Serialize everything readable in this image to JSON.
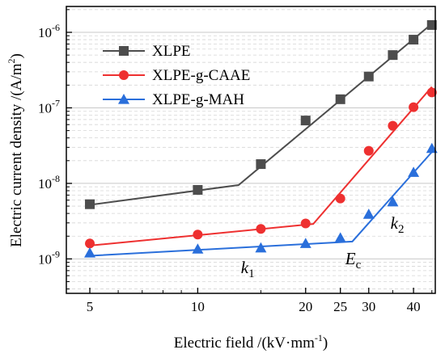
{
  "chart_data": {
    "type": "scatter",
    "title": "",
    "xlabel_prefix": "Electric field /(kV·mm",
    "xlabel_exp": "-1",
    "xlabel_suffix": ")",
    "ylabel_prefix": "Electric current density /(A/m",
    "ylabel_exp": "2",
    "ylabel_suffix": ")",
    "x_scale": "log",
    "y_scale": "log",
    "xlim": [
      4.3,
      46
    ],
    "ylim": [
      3.5e-10,
      2.2e-06
    ],
    "x_ticks": [
      5,
      10,
      20,
      25,
      30,
      40
    ],
    "x_tick_labels": [
      "5",
      "10",
      "20",
      "25",
      "30",
      "40"
    ],
    "y_ticks": [
      1e-09,
      1e-08,
      1e-07,
      1e-06
    ],
    "y_tick_labels": [
      {
        "base": "10",
        "exp": "-9"
      },
      {
        "base": "10",
        "exp": "-8"
      },
      {
        "base": "10",
        "exp": "-7"
      },
      {
        "base": "10",
        "exp": "-6"
      }
    ],
    "grid": "y-major-minor-dashed",
    "legend_position": "top-left",
    "series": [
      {
        "name": "XLPE",
        "marker": "square",
        "color": "#4d4d4d",
        "x": [
          5,
          10,
          15,
          20,
          25,
          30,
          35,
          40,
          45
        ],
        "y": [
          5.3e-09,
          8.2e-09,
          1.8e-08,
          6.8e-08,
          1.3e-07,
          2.6e-07,
          5e-07,
          8e-07,
          1.25e-06
        ],
        "fit_line": [
          [
            5,
            5.2e-09
          ],
          [
            13,
            9.5e-09
          ],
          [
            45,
            1.3e-06
          ]
        ]
      },
      {
        "name": "XLPE-g-CAAE",
        "marker": "circle",
        "color": "#ee3030",
        "x": [
          5,
          10,
          15,
          20,
          25,
          30,
          35,
          40,
          45
        ],
        "y": [
          1.6e-09,
          2.1e-09,
          2.5e-09,
          2.95e-09,
          6.3e-09,
          2.7e-08,
          5.8e-08,
          1.02e-07,
          1.6e-07
        ],
        "fit_line": [
          [
            5,
            1.5e-09
          ],
          [
            21,
            2.9e-09
          ],
          [
            45,
            1.9e-07
          ]
        ]
      },
      {
        "name": "XLPE-g-MAH",
        "marker": "triangle",
        "color": "#2a6fdb",
        "x": [
          5,
          10,
          15,
          20,
          25,
          30,
          35,
          40,
          45
        ],
        "y": [
          1.2e-09,
          1.35e-09,
          1.4e-09,
          1.6e-09,
          1.9e-09,
          3.9e-09,
          5.7e-09,
          1.4e-08,
          2.9e-08
        ],
        "fit_line": [
          [
            5,
            1.1e-09
          ],
          [
            27,
            1.7e-09
          ],
          [
            45,
            2.6e-08
          ]
        ]
      }
    ],
    "annotations": [
      {
        "text": "k",
        "sub": "1",
        "x": 13.2,
        "y": 6.5e-10
      },
      {
        "text": "E",
        "sub": "c",
        "x": 25.8,
        "y": 8.5e-10
      },
      {
        "text": "k",
        "sub": "2",
        "x": 34.5,
        "y": 2.5e-09
      }
    ]
  }
}
